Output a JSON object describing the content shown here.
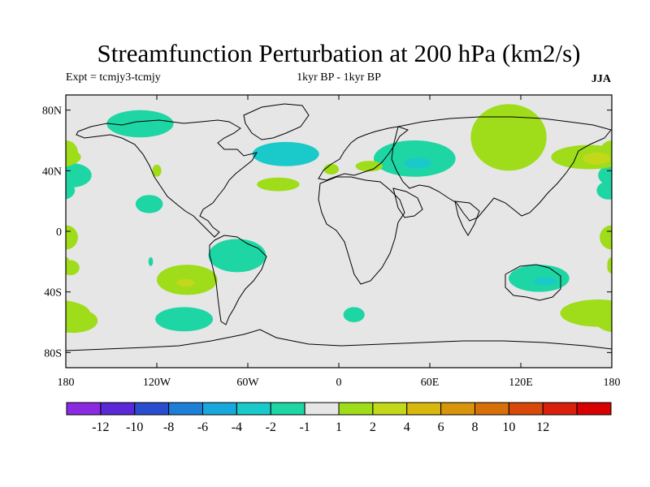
{
  "title": "Streamfunction Perturbation at 200 hPa (km2/s)",
  "subtitle_left": "Expt = tcmjy3-tcmjy",
  "subtitle_center": "1kyr BP - 1kyr BP",
  "subtitle_right": "JJA",
  "map": {
    "projection": "cylindrical-equidistant",
    "lon_range": [
      -180,
      180
    ],
    "lat_range": [
      -90,
      90
    ],
    "background_color": "#e6e6e6",
    "y_ticks": [
      {
        "lat": 80,
        "label": "80N"
      },
      {
        "lat": 40,
        "label": "40N"
      },
      {
        "lat": 0,
        "label": "0"
      },
      {
        "lat": -40,
        "label": "40S"
      },
      {
        "lat": -80,
        "label": "80S"
      }
    ],
    "x_ticks": [
      {
        "lon": -180,
        "label": "180"
      },
      {
        "lon": -120,
        "label": "120W"
      },
      {
        "lon": -60,
        "label": "60W"
      },
      {
        "lon": 0,
        "label": "0"
      },
      {
        "lon": 60,
        "label": "60E"
      },
      {
        "lon": 120,
        "label": "120E"
      },
      {
        "lon": 180,
        "label": "180"
      }
    ],
    "anomalies": [
      {
        "lon": -131,
        "lat": 71,
        "rlon": 22,
        "rlat": 9,
        "value": -1.5
      },
      {
        "lon": -35,
        "lat": 51,
        "rlon": 22,
        "rlat": 8,
        "value": -2.5
      },
      {
        "lon": -38,
        "lat": 52,
        "rlon": 8,
        "rlat": 3.5,
        "value": -3.5
      },
      {
        "lon": -40,
        "lat": 31,
        "rlon": 14,
        "rlat": 4.5,
        "value": 1.5
      },
      {
        "lon": -125,
        "lat": 18,
        "rlon": 9,
        "rlat": 6,
        "value": -1.5
      },
      {
        "lon": -176,
        "lat": 37,
        "rlon": 13,
        "rlat": 8,
        "value": -1.5
      },
      {
        "lon": -180,
        "lat": 52,
        "rlon": 8,
        "rlat": 8,
        "value": 1.5
      },
      {
        "lon": -180,
        "lat": -4,
        "rlon": 8,
        "rlat": 8,
        "value": 1.5
      },
      {
        "lon": -177,
        "lat": -24,
        "rlon": 6,
        "rlat": 5,
        "value": 1.5
      },
      {
        "lon": -124,
        "lat": -20,
        "rlon": 1.5,
        "rlat": 3,
        "value": -1.5
      },
      {
        "lon": -120,
        "lat": 40,
        "rlon": 3,
        "rlat": 4,
        "value": 1.5
      },
      {
        "lon": -67,
        "lat": -16,
        "rlon": 19,
        "rlat": 11,
        "value": -1.5
      },
      {
        "lon": -100,
        "lat": -32,
        "rlon": 20,
        "rlat": 10,
        "value": 1.5
      },
      {
        "lon": -101,
        "lat": -34,
        "rlon": 6,
        "rlat": 2.5,
        "value": 2.5
      },
      {
        "lon": -102,
        "lat": -58,
        "rlon": 19,
        "rlat": 8,
        "value": -1.5
      },
      {
        "lon": -175,
        "lat": -59,
        "rlon": 16,
        "rlat": 8,
        "value": 1.5
      },
      {
        "lon": 10,
        "lat": -55,
        "rlon": 7,
        "rlat": 5,
        "value": -1.5
      },
      {
        "lon": -5,
        "lat": 41,
        "rlon": 5,
        "rlat": 3.5,
        "value": 1.5
      },
      {
        "lon": 50,
        "lat": 48,
        "rlon": 27,
        "rlat": 12,
        "value": -1.5
      },
      {
        "lon": 52,
        "lat": 45,
        "rlon": 9,
        "rlat": 3.5,
        "value": -2.5
      },
      {
        "lon": 20,
        "lat": 43,
        "rlon": 9,
        "rlat": 3.5,
        "value": 1.5
      },
      {
        "lon": 112,
        "lat": 62,
        "rlon": 25,
        "rlat": 22,
        "value": 1.5
      },
      {
        "lon": 165,
        "lat": 49,
        "rlon": 25,
        "rlat": 8,
        "value": 1.5
      },
      {
        "lon": 170,
        "lat": 48,
        "rlon": 9,
        "rlat": 4,
        "value": 2.5
      },
      {
        "lon": 178,
        "lat": 27,
        "rlon": 8,
        "rlat": 6,
        "value": -1.5
      },
      {
        "lon": 178,
        "lat": -4,
        "rlon": 5,
        "rlat": 6,
        "value": 1.5
      },
      {
        "lon": 180,
        "lat": -22,
        "rlon": 3,
        "rlat": 5,
        "value": 1.5
      },
      {
        "lon": 132,
        "lat": -31,
        "rlon": 20,
        "rlat": 9,
        "value": -1.5
      },
      {
        "lon": 136,
        "lat": -33,
        "rlon": 8,
        "rlat": 2.5,
        "value": -2.5
      },
      {
        "lon": 171,
        "lat": -54,
        "rlon": 25,
        "rlat": 9,
        "value": 1.5
      }
    ]
  },
  "colorbar": {
    "colors": [
      "#8a2be2",
      "#5a28d6",
      "#2a4ccf",
      "#1e7fd6",
      "#18a8dc",
      "#1ac9c9",
      "#1dd6a4",
      "#e6e6e6",
      "#9fdc1a",
      "#c4d81a",
      "#d8b80e",
      "#d8940a",
      "#d8700a",
      "#d8480a",
      "#d8200a",
      "#d80000"
    ],
    "labels": [
      "-12",
      "-10",
      "-8",
      "-6",
      "-4",
      "-2",
      "-1",
      "1",
      "2",
      "4",
      "6",
      "8",
      "10",
      "12"
    ],
    "levels": [
      -12,
      -10,
      -8,
      -6,
      -4,
      -2,
      -1,
      1,
      2,
      4,
      6,
      8,
      10,
      12
    ]
  }
}
